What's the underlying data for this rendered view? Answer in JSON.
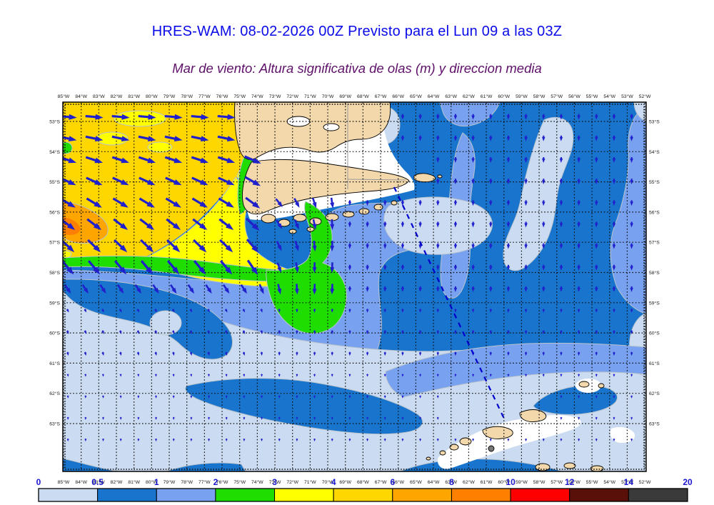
{
  "header": {
    "title": "HRES-WAM: 08-02-2026 00Z Previsto para el Lun 09 a las 03Z",
    "subtitle": "Mar de viento: Altura significativa de olas (m) y direccion media"
  },
  "map": {
    "lon_labels": [
      "85°W",
      "84°W",
      "83°W",
      "82°W",
      "81°W",
      "80°W",
      "79°W",
      "78°W",
      "77°W",
      "76°W",
      "75°W",
      "74°W",
      "73°W",
      "72°W",
      "71°W",
      "70°W",
      "69°W",
      "68°W",
      "67°W",
      "66°W",
      "65°W",
      "64°W",
      "63°W",
      "62°W",
      "61°W",
      "60°W",
      "59°W",
      "58°W",
      "57°W",
      "56°W",
      "55°W",
      "54°W",
      "53°W",
      "52°W"
    ],
    "lat_labels": [
      "53°S",
      "54°S",
      "55°S",
      "56°S",
      "57°S",
      "58°S",
      "59°S",
      "60°S",
      "61°S",
      "62°S",
      "63°S"
    ]
  },
  "colorbar": {
    "boundary_labels": [
      "0",
      "0.5",
      "1",
      "2",
      "3",
      "4",
      "6",
      "8",
      "10",
      "12",
      "14",
      "20"
    ],
    "segment_colors": [
      "#cbdcf2",
      "#1874cd",
      "#78a1f0",
      "#1fdd00",
      "#ffff00",
      "#ffd700",
      "#ffa500",
      "#ff8000",
      "#ff0000",
      "#581008",
      "#3a3a3a"
    ],
    "label_color": "#1a17cf"
  },
  "palette": {
    "title_text": "#0a0ae8",
    "subtitle_text": "#5e1069",
    "tick_text": "#1a1a1a",
    "land": "#f2d8aa",
    "land_outline": "#000000",
    "coast_buffer": "#ffffff",
    "arrow": "#2020cc",
    "route_line": "#0000cd",
    "grid_dots": "#0d0d0d",
    "wave_0_05": "#cbdcf2",
    "wave_05_1": "#1874cd",
    "wave_1_2": "#78a1f0",
    "wave_2_3": "#1fdd00",
    "wave_3_4": "#ffff00",
    "wave_4_6": "#ffd700",
    "wave_6_8": "#ffa500",
    "wave_8_10": "#ff8000"
  },
  "chart_data": {
    "type": "heatmap",
    "title": "HRES-WAM: 08-02-2026 00Z Previsto para el Lun 09 a las 03Z",
    "subtitle": "Mar de viento: Altura significativa de olas (m) y direccion media",
    "units": "m",
    "x_axis": {
      "label": "longitude",
      "ticks_from": "85°W",
      "ticks_to": "52°W",
      "step_deg": 1
    },
    "y_axis": {
      "label": "latitude",
      "ticks_from": "53°S",
      "ticks_to": "63°S",
      "step_deg": 1
    },
    "legend_bins": [
      {
        "range": "0-0.5",
        "color": "#cbdcf2"
      },
      {
        "range": "0.5-1",
        "color": "#1874cd"
      },
      {
        "range": "1-2",
        "color": "#78a1f0"
      },
      {
        "range": "2-3",
        "color": "#1fdd00"
      },
      {
        "range": "3-4",
        "color": "#ffff00"
      },
      {
        "range": "4-6",
        "color": "#ffd700"
      },
      {
        "range": "6-8",
        "color": "#ffa500"
      },
      {
        "range": "8-10",
        "color": "#ff8000"
      },
      {
        "range": "10-12",
        "color": "#ff0000"
      },
      {
        "range": "12-14",
        "color": "#581008"
      },
      {
        "range": "14-20",
        "color": "#3a3a3a"
      }
    ],
    "map_summary": "Wave heights of 4-6 m (gold) with 6-8 m patches in the NW Pacific sector, decreasing through 3-4 m (yellow) and 2-3 m (green) bands SW of Tierra del Fuego, to 0.5-2 m (blues) across the Atlantic sector and Drake Passage; mean wave direction arrows point E-SE in the west turning S in the east; dashed route line crosses Drake Passage toward the South Shetland Islands."
  }
}
